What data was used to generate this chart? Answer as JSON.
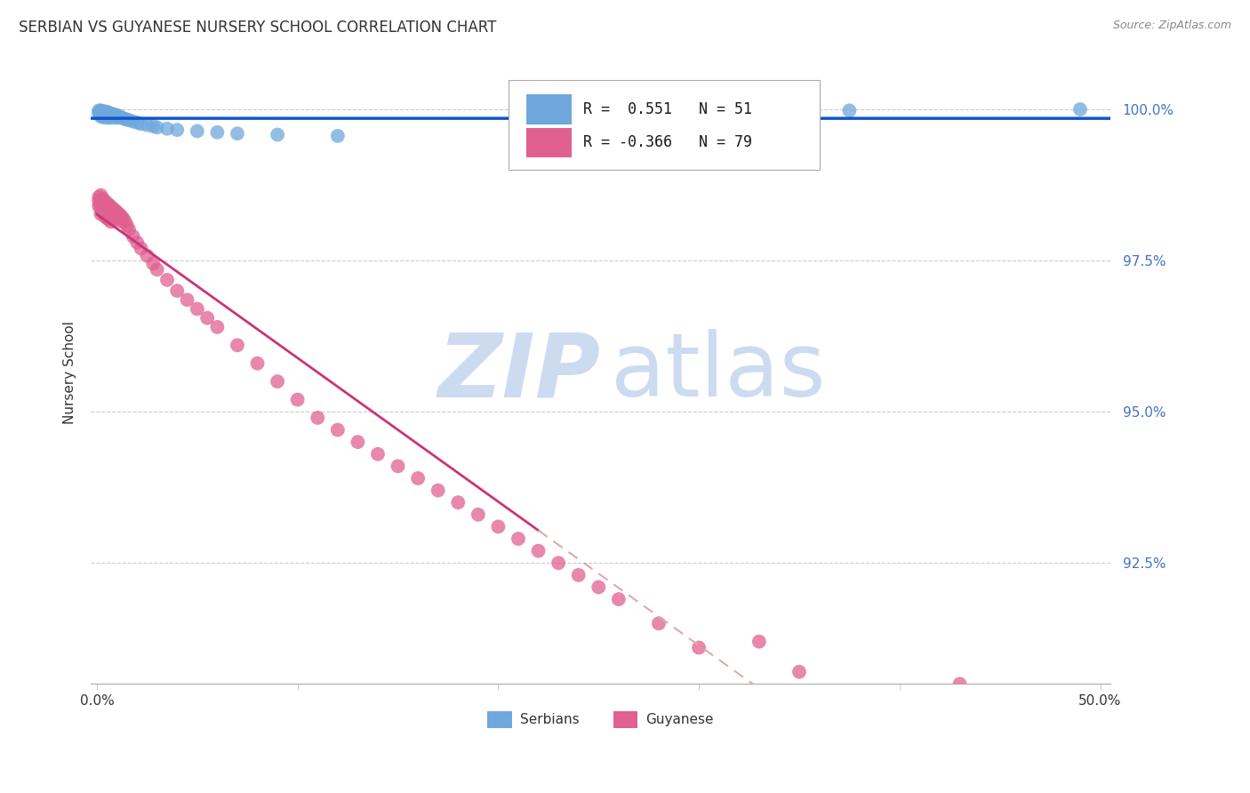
{
  "title": "SERBIAN VS GUYANESE NURSERY SCHOOL CORRELATION CHART",
  "source": "Source: ZipAtlas.com",
  "ylabel": "Nursery School",
  "ytick_labels": [
    "100.0%",
    "97.5%",
    "95.0%",
    "92.5%"
  ],
  "ytick_values": [
    1.0,
    0.975,
    0.95,
    0.925
  ],
  "ylim": [
    0.905,
    1.008
  ],
  "xlim": [
    -0.003,
    0.505
  ],
  "serbian_color": "#6fa8dc",
  "guyanese_color": "#e06090",
  "serbian_line_color": "#1155cc",
  "guyanese_line_color": "#cc3377",
  "guyanese_dashed_color": "#ddaaaa",
  "watermark_zip_color": "#c8d8f0",
  "watermark_atlas_color": "#c8d8f0",
  "serbian_x": [
    0.001,
    0.001,
    0.001,
    0.002,
    0.002,
    0.002,
    0.002,
    0.003,
    0.003,
    0.003,
    0.003,
    0.004,
    0.004,
    0.004,
    0.005,
    0.005,
    0.005,
    0.005,
    0.006,
    0.006,
    0.006,
    0.007,
    0.007,
    0.007,
    0.008,
    0.008,
    0.009,
    0.009,
    0.01,
    0.01,
    0.011,
    0.012,
    0.013,
    0.014,
    0.015,
    0.016,
    0.018,
    0.02,
    0.022,
    0.025,
    0.028,
    0.03,
    0.035,
    0.04,
    0.05,
    0.06,
    0.07,
    0.09,
    0.12,
    0.375,
    0.49
  ],
  "serbian_y": [
    0.9998,
    0.9995,
    0.9992,
    0.9998,
    0.9995,
    0.9992,
    0.9988,
    0.9997,
    0.9994,
    0.9991,
    0.9987,
    0.9996,
    0.9993,
    0.9989,
    0.9996,
    0.9993,
    0.999,
    0.9986,
    0.9994,
    0.9991,
    0.9988,
    0.9993,
    0.999,
    0.9986,
    0.9992,
    0.9989,
    0.9991,
    0.9987,
    0.999,
    0.9986,
    0.9989,
    0.9987,
    0.9985,
    0.9984,
    0.9983,
    0.9982,
    0.998,
    0.9978,
    0.9976,
    0.9974,
    0.9972,
    0.997,
    0.9968,
    0.9966,
    0.9964,
    0.9962,
    0.996,
    0.9958,
    0.9956,
    0.9998,
    1.0
  ],
  "guyanese_x": [
    0.001,
    0.001,
    0.001,
    0.002,
    0.002,
    0.002,
    0.002,
    0.002,
    0.003,
    0.003,
    0.003,
    0.003,
    0.004,
    0.004,
    0.004,
    0.004,
    0.005,
    0.005,
    0.005,
    0.005,
    0.006,
    0.006,
    0.006,
    0.006,
    0.007,
    0.007,
    0.007,
    0.007,
    0.008,
    0.008,
    0.008,
    0.009,
    0.009,
    0.01,
    0.01,
    0.011,
    0.011,
    0.012,
    0.012,
    0.013,
    0.014,
    0.015,
    0.016,
    0.018,
    0.02,
    0.022,
    0.025,
    0.028,
    0.03,
    0.035,
    0.04,
    0.045,
    0.05,
    0.055,
    0.06,
    0.07,
    0.08,
    0.09,
    0.1,
    0.11,
    0.12,
    0.13,
    0.14,
    0.15,
    0.16,
    0.17,
    0.18,
    0.19,
    0.2,
    0.21,
    0.22,
    0.23,
    0.24,
    0.25,
    0.26,
    0.28,
    0.3,
    0.35,
    0.43
  ],
  "guyanese_y": [
    0.9855,
    0.9848,
    0.984,
    0.9858,
    0.985,
    0.9843,
    0.9835,
    0.9827,
    0.9852,
    0.9844,
    0.9837,
    0.9829,
    0.9848,
    0.984,
    0.9832,
    0.9823,
    0.9845,
    0.9837,
    0.9829,
    0.982,
    0.9842,
    0.9834,
    0.9826,
    0.9818,
    0.9839,
    0.9831,
    0.9822,
    0.9814,
    0.9836,
    0.9828,
    0.9819,
    0.9833,
    0.9824,
    0.983,
    0.9821,
    0.9827,
    0.9818,
    0.9824,
    0.9815,
    0.982,
    0.9815,
    0.9808,
    0.9801,
    0.979,
    0.978,
    0.977,
    0.9758,
    0.9745,
    0.9735,
    0.9718,
    0.97,
    0.9685,
    0.967,
    0.9655,
    0.964,
    0.961,
    0.958,
    0.955,
    0.952,
    0.949,
    0.947,
    0.945,
    0.943,
    0.941,
    0.939,
    0.937,
    0.935,
    0.933,
    0.931,
    0.929,
    0.927,
    0.925,
    0.923,
    0.921,
    0.919,
    0.915,
    0.911,
    0.907,
    0.905
  ],
  "guyanese_outlier_x": [
    0.33
  ],
  "guyanese_outlier_y": [
    0.912
  ]
}
